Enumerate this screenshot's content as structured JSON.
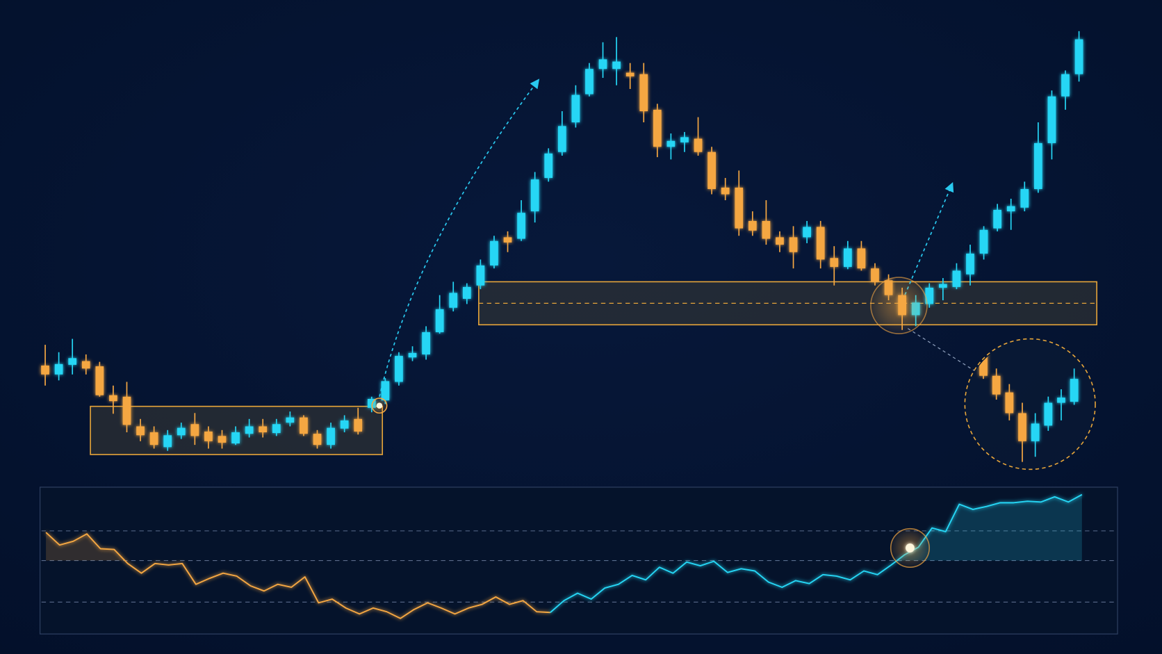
{
  "chart_data": [
    {
      "type": "candlestick",
      "up_color": "#25d6f5",
      "down_color": "#f5a742",
      "ylim": [
        0,
        620
      ],
      "open": [
        147,
        135,
        148,
        153,
        146,
        107,
        105,
        65,
        57,
        37,
        53,
        68,
        58,
        52,
        42,
        55,
        65,
        56,
        70,
        77,
        55,
        40,
        62,
        75,
        90,
        100,
        125,
        158,
        162,
        192,
        225,
        237,
        255,
        282,
        320,
        318,
        355,
        400,
        435,
        475,
        513,
        547,
        547,
        542,
        540,
        492,
        442,
        448,
        453,
        435,
        387,
        387,
        342,
        342,
        320,
        320,
        320,
        334,
        292,
        280,
        305,
        278,
        262,
        242,
        215,
        230,
        252,
        253,
        270,
        298,
        332,
        355,
        360,
        385,
        447,
        510,
        540
      ],
      "high": [
        175,
        165,
        183,
        162,
        152,
        120,
        125,
        75,
        65,
        60,
        70,
        83,
        65,
        60,
        65,
        75,
        75,
        75,
        85,
        80,
        60,
        70,
        80,
        90,
        105,
        130,
        165,
        173,
        200,
        242,
        260,
        258,
        290,
        322,
        328,
        370,
        408,
        440,
        490,
        525,
        555,
        583,
        590,
        555,
        555,
        500,
        460,
        462,
        482,
        442,
        400,
        410,
        355,
        370,
        328,
        335,
        342,
        342,
        308,
        315,
        315,
        285,
        270,
        252,
        242,
        258,
        265,
        285,
        310,
        335,
        365,
        372,
        395,
        475,
        518,
        545,
        598
      ],
      "low": [
        120,
        127,
        135,
        135,
        105,
        82,
        57,
        45,
        35,
        32,
        48,
        40,
        35,
        35,
        40,
        50,
        50,
        52,
        65,
        52,
        35,
        35,
        57,
        54,
        84,
        95,
        120,
        153,
        155,
        190,
        220,
        230,
        250,
        278,
        300,
        315,
        340,
        395,
        430,
        468,
        510,
        535,
        525,
        520,
        475,
        428,
        425,
        435,
        430,
        378,
        370,
        322,
        322,
        310,
        300,
        278,
        312,
        278,
        255,
        277,
        275,
        255,
        235,
        195,
        200,
        225,
        235,
        250,
        255,
        290,
        328,
        330,
        355,
        380,
        425,
        492,
        530
      ],
      "close": [
        135,
        149,
        157,
        143,
        107,
        99,
        67,
        53,
        40,
        53,
        63,
        52,
        45,
        43,
        57,
        65,
        57,
        68,
        77,
        55,
        40,
        63,
        73,
        58,
        102,
        126,
        160,
        164,
        192,
        223,
        245,
        253,
        282,
        315,
        313,
        353,
        398,
        433,
        470,
        512,
        547,
        560,
        557,
        537,
        490,
        442,
        450,
        455,
        435,
        385,
        378,
        332,
        329,
        318,
        310,
        300,
        334,
        290,
        280,
        305,
        278,
        260,
        242,
        215,
        232,
        252,
        257,
        275,
        298,
        330,
        357,
        362,
        385,
        447,
        510,
        540,
        587
      ]
    },
    {
      "type": "line",
      "ylim": [
        0,
        100
      ],
      "yticks": [
        72,
        52,
        24
      ],
      "grid": true,
      "series": [
        {
          "color": "#f5a742",
          "values": [
            71,
            62.5,
            65,
            70,
            60,
            59.5,
            50,
            43.5,
            50,
            49,
            50,
            36,
            40,
            43.5,
            41.5,
            35,
            31.5,
            36,
            34,
            41,
            23.5,
            26,
            20,
            16,
            20,
            17.5,
            13,
            19,
            23.5,
            20,
            16,
            20,
            22.5,
            27.5,
            22.5,
            25,
            17.5,
            17,
            null,
            null,
            null,
            null,
            null,
            null,
            null,
            null,
            null,
            null,
            null,
            null,
            null,
            null,
            null,
            null,
            null,
            null,
            null,
            null,
            null,
            null,
            null,
            null,
            null,
            null,
            null,
            null,
            null,
            null,
            null,
            null,
            null,
            null,
            null,
            null,
            null,
            null,
            null
          ]
        },
        {
          "color": "#25d6f5",
          "values": [
            null,
            null,
            null,
            null,
            null,
            null,
            null,
            null,
            null,
            null,
            null,
            null,
            null,
            null,
            null,
            null,
            null,
            null,
            null,
            null,
            null,
            null,
            null,
            null,
            null,
            null,
            null,
            null,
            null,
            null,
            null,
            null,
            null,
            null,
            null,
            null,
            null,
            17,
            25,
            30,
            26,
            33.5,
            36,
            42,
            39,
            47.5,
            43.5,
            51,
            48.5,
            51.5,
            44,
            46.5,
            45,
            37.5,
            34,
            38.5,
            36.5,
            42.5,
            41.5,
            39,
            45,
            42.5,
            49,
            56,
            61,
            74,
            71.5,
            90,
            86.5,
            88.5,
            91,
            91,
            92,
            91.5,
            95,
            91.5,
            96.5
          ]
        }
      ]
    }
  ]
}
